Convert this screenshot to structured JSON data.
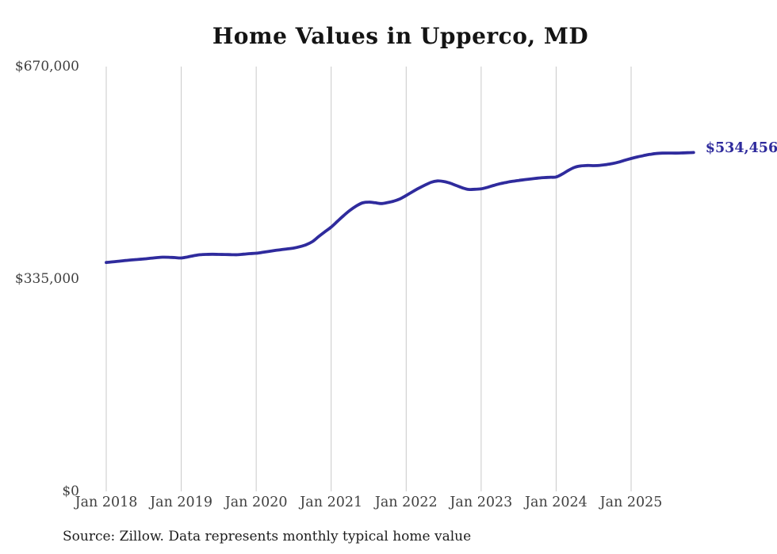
{
  "page": {
    "source_note": "Source: Zillow. Data represents monthly typical home value"
  },
  "chart_data": {
    "type": "line",
    "title": "Home Values in Upperco, MD",
    "xlabel": "",
    "ylabel": "",
    "ylim": [
      0,
      670000
    ],
    "grid": "vertical-only",
    "legend": "none",
    "end_label": "$534,456",
    "end_value": 534456,
    "y_ticks": [
      {
        "value": 670000,
        "label": "$670,000"
      },
      {
        "value": 335000,
        "label": "$335,000"
      },
      {
        "value": 0,
        "label": "$0"
      }
    ],
    "x_ticks": [
      "Jan 2018",
      "Jan 2019",
      "Jan 2020",
      "Jan 2021",
      "Jan 2022",
      "Jan 2023",
      "Jan 2024",
      "Jan 2025"
    ],
    "series": [
      {
        "name": "Typical home value",
        "x_start": "2018-01",
        "x_freq": "monthly",
        "values": [
          361000,
          362000,
          363000,
          364100,
          365000,
          365800,
          366600,
          367600,
          368600,
          369400,
          369200,
          368700,
          368100,
          369800,
          371700,
          373200,
          373800,
          374000,
          373800,
          373600,
          373400,
          373300,
          374100,
          375000,
          375600,
          377000,
          378500,
          380000,
          381200,
          382500,
          383800,
          386000,
          389000,
          394000,
          402000,
          409500,
          416900,
          426000,
          435000,
          443200,
          450000,
          455000,
          456300,
          455200,
          454000,
          455500,
          457700,
          461300,
          466600,
          472500,
          478000,
          483000,
          487500,
          489600,
          488800,
          486200,
          482500,
          478800,
          476300,
          476500,
          477100,
          479500,
          482500,
          485200,
          487300,
          489000,
          490400,
          491700,
          492900,
          494000,
          494900,
          495400,
          495900,
          500500,
          506500,
          511300,
          513400,
          514000,
          513800,
          514300,
          515400,
          517000,
          519200,
          522200,
          525000,
          527500,
          529600,
          531500,
          532900,
          533500,
          533600,
          533500,
          533700,
          534100,
          534456
        ]
      }
    ]
  },
  "colors": {
    "line": "#2f2b9d",
    "grid": "#c9c9c9",
    "title": "#141414",
    "axis_label": "#404040",
    "source": "#1d1d1d",
    "background": "#ffffff"
  }
}
